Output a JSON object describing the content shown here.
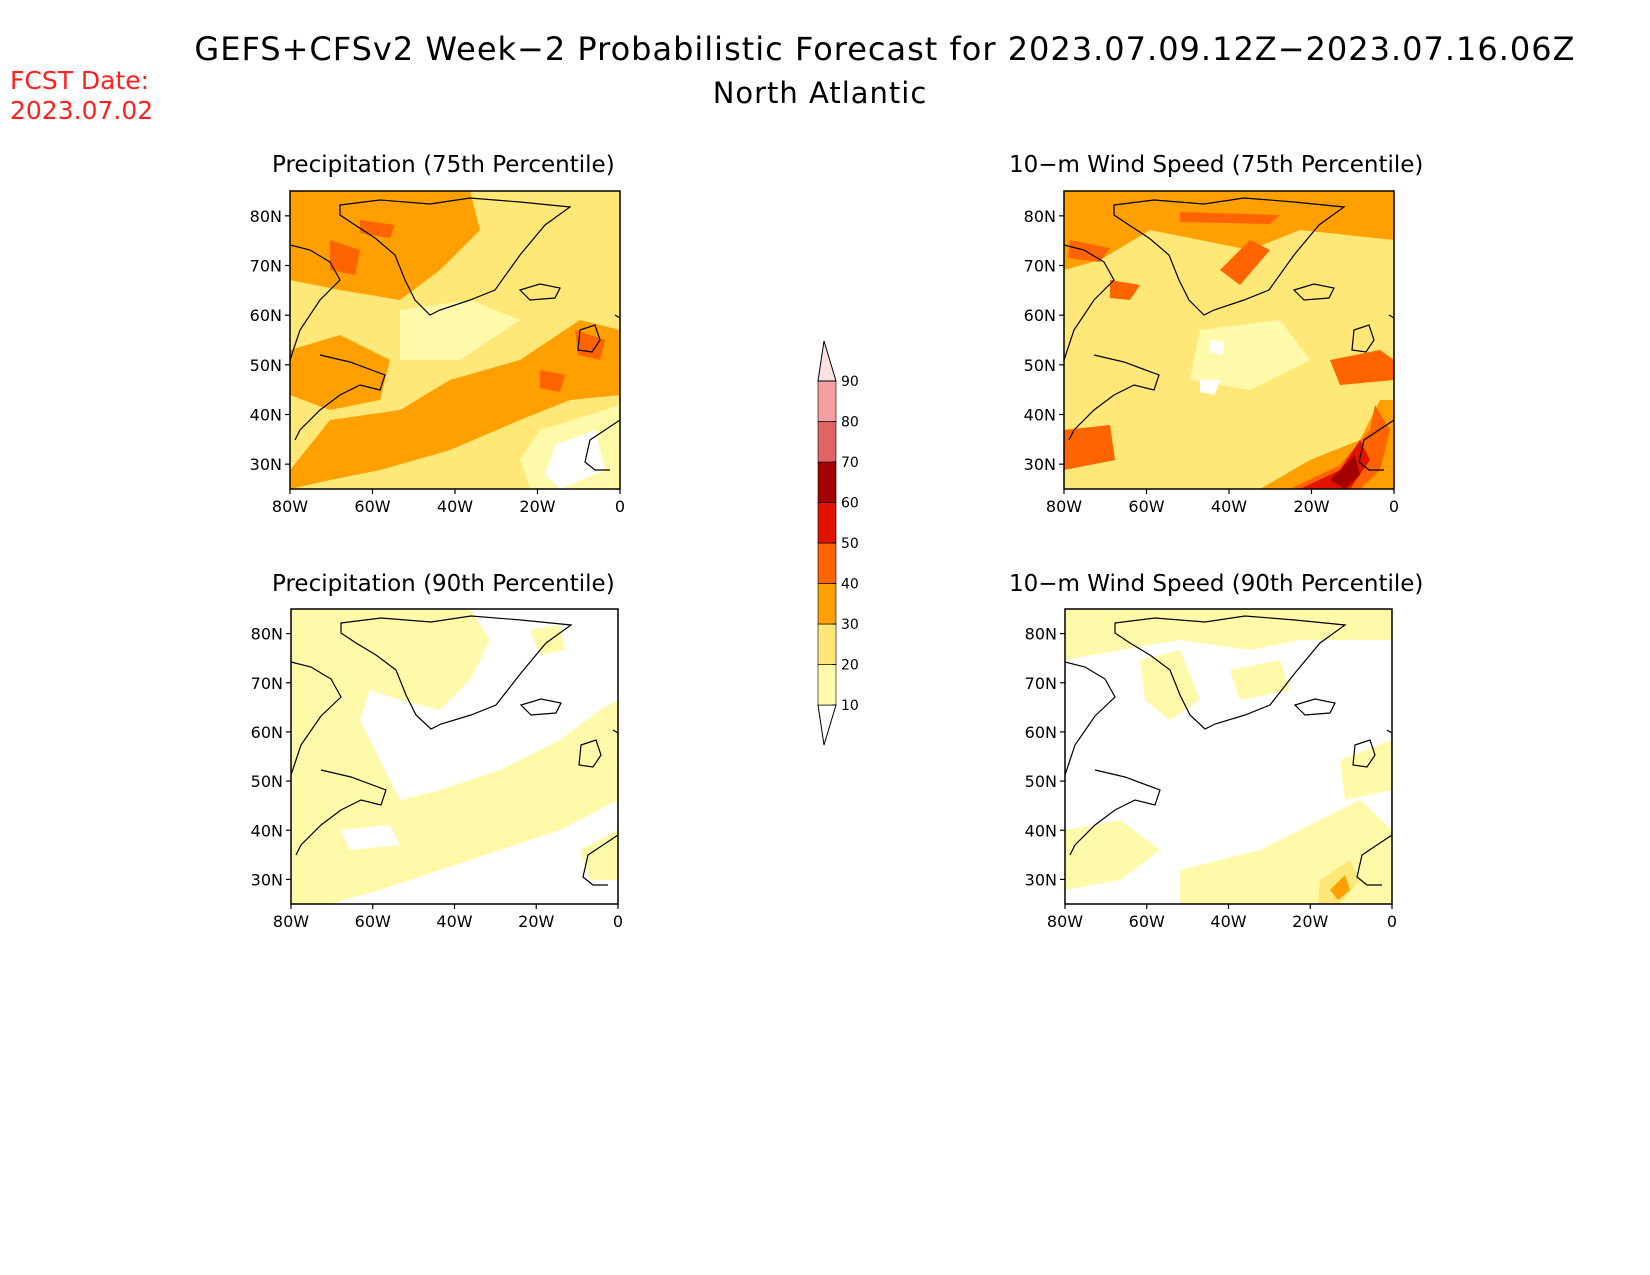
{
  "header": {
    "title": "GEFS+CFSv2 Week−2 Probabilistic Forecast for 2023.07.09.12Z−2023.07.16.06Z",
    "subtitle": "North Atlantic",
    "fcst_label": "FCST Date:",
    "fcst_date": "2023.07.02"
  },
  "panels": [
    {
      "id": "precip75",
      "title": "Precipitation (75th Percentile)"
    },
    {
      "id": "wind75",
      "title": "10−m Wind Speed (75th Percentile)"
    },
    {
      "id": "precip90",
      "title": "Precipitation (90th Percentile)"
    },
    {
      "id": "wind90",
      "title": "10−m Wind Speed (90th Percentile)"
    }
  ],
  "axes": {
    "lat_ticks": [
      "80N",
      "70N",
      "60N",
      "50N",
      "40N",
      "30N"
    ],
    "lon_ticks": [
      "80W",
      "60W",
      "40W",
      "20W",
      "0"
    ]
  },
  "colorbar": {
    "levels": [
      "10",
      "20",
      "30",
      "40",
      "50",
      "60",
      "70",
      "80",
      "90"
    ],
    "colors": [
      "#ffffff",
      "#fffaaa",
      "#ffe878",
      "#ffa000",
      "#ff6400",
      "#e11400",
      "#a50000",
      "#e16464",
      "#f5a0a0",
      "#ffe1e1"
    ]
  },
  "colors": {
    "fcst": "#ff2020",
    "level_10_20": "#fffaaa",
    "level_20_30": "#ffe878",
    "level_30_40": "#ffa000",
    "level_40_50": "#ff6400",
    "level_50_60": "#e11400",
    "level_60_70": "#a50000"
  }
}
